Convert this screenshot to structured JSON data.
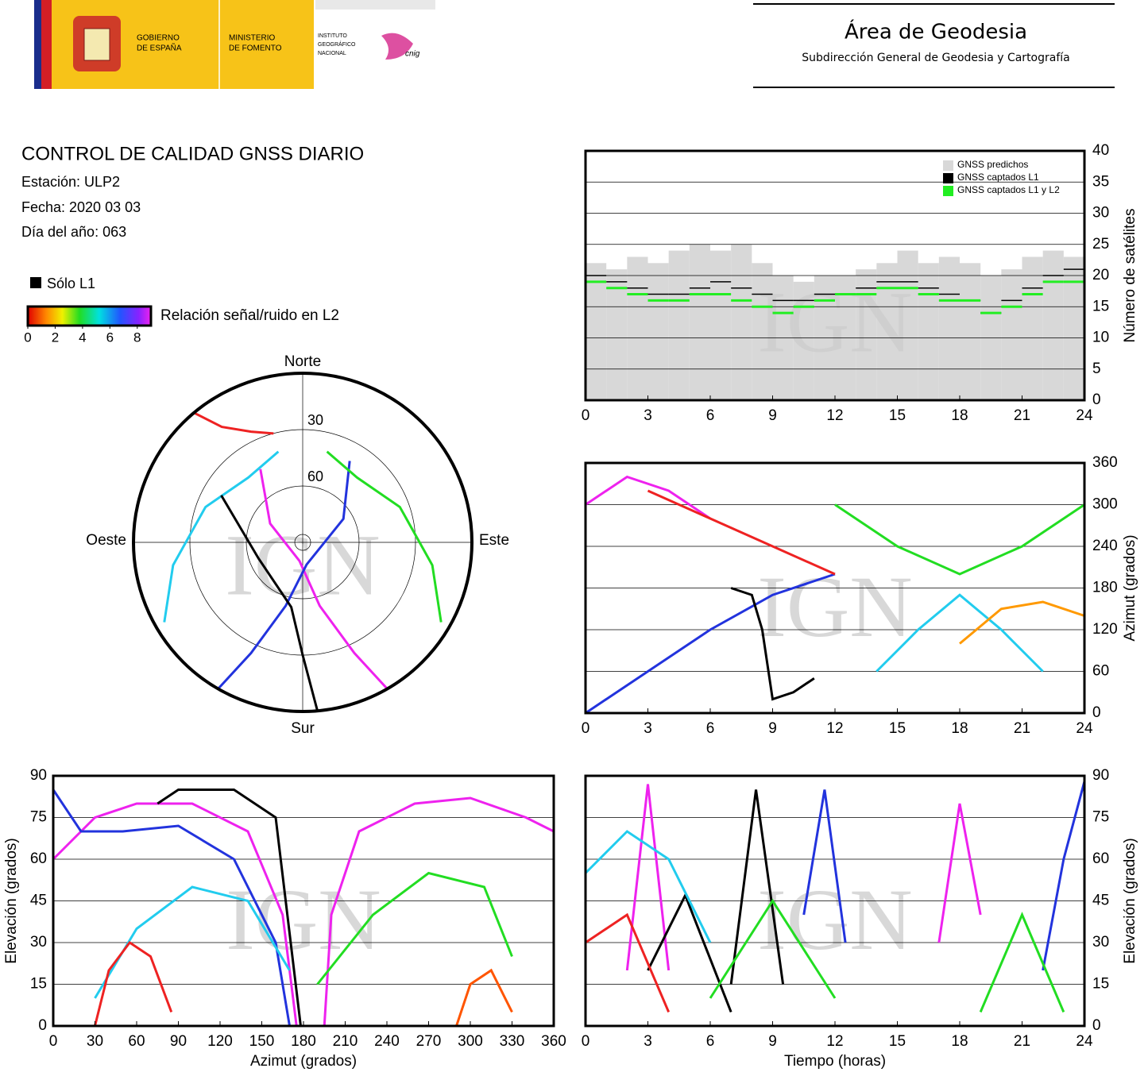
{
  "header": {
    "gobierno": [
      "GOBIERNO",
      "DE ESPAÑA"
    ],
    "ministerio": [
      "MINISTERIO",
      "DE FOMENTO"
    ],
    "instituto": [
      "INSTITUTO",
      "GEOGRÁFICO",
      "NACIONAL"
    ],
    "cnig": "cnig",
    "area": "Área de Geodesia",
    "subdireccion": "Subdirección General de Geodesia y Cartografía"
  },
  "report": {
    "title": "CONTROL DE CALIDAD GNSS DIARIO",
    "station": "Estación: ULP2",
    "date": "Fecha: 2020 03 03",
    "doy": "Día del año: 063"
  },
  "legend": {
    "solo_l1": "Sólo L1",
    "snr_label": "Relación señal/ruido en L2",
    "snr_ticks": [
      0,
      2,
      4,
      6,
      8
    ],
    "snr_lim": [
      0,
      9
    ]
  },
  "watermark": "IGN",
  "chart_data": [
    {
      "type": "polar",
      "cardinal": {
        "north": "Norte",
        "south": "Sur",
        "east": "Este",
        "west": "Oeste"
      },
      "rticks": [
        30,
        60
      ],
      "rlim": [
        90,
        0
      ],
      "series": [
        {
          "color": "#ee22ee",
          "azimuth": [
            150,
            155,
            165,
            190,
            300,
            330
          ],
          "elevation": [
            0,
            25,
            55,
            80,
            70,
            45
          ]
        },
        {
          "color": "#2233dd",
          "azimuth": [
            210,
            205,
            195,
            170,
            60,
            30
          ],
          "elevation": [
            0,
            25,
            55,
            78,
            65,
            40
          ]
        },
        {
          "color": "#22ccee",
          "azimuth": [
            240,
            260,
            290,
            320,
            345
          ],
          "elevation": [
            5,
            20,
            35,
            45,
            40
          ]
        },
        {
          "color": "#22dd22",
          "azimuth": [
            120,
            100,
            70,
            40,
            15
          ],
          "elevation": [
            5,
            20,
            35,
            45,
            40
          ]
        },
        {
          "color": "#ee2222",
          "azimuth": [
            320,
            325,
            335,
            345
          ],
          "elevation": [
            0,
            15,
            25,
            30
          ]
        },
        {
          "color": "#000000",
          "azimuth": [
            175,
            180,
            190,
            250,
            300
          ],
          "elevation": [
            0,
            30,
            55,
            65,
            40
          ]
        }
      ]
    },
    {
      "type": "step",
      "ylabel": "Número de satélites",
      "yaxis_side": "right",
      "grid": true,
      "legend": "upper right",
      "xlim": [
        0,
        24
      ],
      "ylim": [
        0,
        40
      ],
      "xticks": [
        0,
        3,
        6,
        9,
        12,
        15,
        18,
        21,
        24
      ],
      "yticks": [
        0,
        5,
        10,
        15,
        20,
        25,
        30,
        35,
        40
      ],
      "x": [
        0,
        1,
        2,
        3,
        4,
        5,
        6,
        7,
        8,
        9,
        10,
        11,
        12,
        13,
        14,
        15,
        16,
        17,
        18,
        19,
        20,
        21,
        22,
        23
      ],
      "series": [
        {
          "name": "GNSS predichos",
          "color": "#d8d8d8",
          "fill": true,
          "values": [
            22,
            21,
            23,
            22,
            24,
            25,
            24,
            25,
            22,
            20,
            19,
            20,
            20,
            21,
            22,
            24,
            22,
            23,
            22,
            20,
            21,
            23,
            24,
            23
          ]
        },
        {
          "name": "GNSS captados L1",
          "color": "#000000",
          "fill": false,
          "values": [
            20,
            19,
            18,
            17,
            17,
            18,
            19,
            18,
            17,
            16,
            16,
            17,
            17,
            18,
            19,
            19,
            18,
            17,
            16,
            14,
            16,
            18,
            20,
            21
          ]
        },
        {
          "name": "GNSS captados L1 y L2",
          "color": "#22ee22",
          "fill": false,
          "values": [
            19,
            18,
            17,
            16,
            16,
            17,
            17,
            16,
            15,
            14,
            15,
            16,
            17,
            17,
            18,
            18,
            17,
            16,
            16,
            14,
            15,
            17,
            19,
            19
          ]
        }
      ]
    },
    {
      "type": "line",
      "ylabel": "Azimut (grados)",
      "yaxis_side": "right",
      "grid": true,
      "xlim": [
        0,
        24
      ],
      "ylim": [
        0,
        360
      ],
      "xticks": [
        0,
        3,
        6,
        9,
        12,
        15,
        18,
        21,
        24
      ],
      "yticks": [
        0,
        60,
        120,
        180,
        240,
        300,
        360
      ],
      "series": [
        {
          "color": "#ee22ee",
          "x": [
            0,
            2,
            4,
            6
          ],
          "y": [
            300,
            340,
            320,
            280
          ]
        },
        {
          "color": "#2233dd",
          "x": [
            0,
            3,
            6,
            9,
            12
          ],
          "y": [
            0,
            60,
            120,
            170,
            200
          ]
        },
        {
          "color": "#22dd22",
          "x": [
            12,
            15,
            18,
            21,
            24
          ],
          "y": [
            300,
            240,
            200,
            240,
            300
          ]
        },
        {
          "color": "#ee2222",
          "x": [
            3,
            6,
            9,
            12
          ],
          "y": [
            320,
            280,
            240,
            200
          ]
        },
        {
          "color": "#22ccee",
          "x": [
            14,
            16,
            18,
            20,
            22
          ],
          "y": [
            60,
            120,
            170,
            120,
            60
          ]
        },
        {
          "color": "#000000",
          "x": [
            7,
            8,
            8.5,
            9,
            10,
            11
          ],
          "y": [
            180,
            170,
            120,
            20,
            30,
            50
          ]
        },
        {
          "color": "#ff9900",
          "x": [
            18,
            20,
            22,
            24
          ],
          "y": [
            100,
            150,
            160,
            140
          ]
        }
      ]
    },
    {
      "type": "line",
      "xlabel": "Azimut (grados)",
      "ylabel": "Elevación (grados)",
      "yaxis_side": "left",
      "grid": true,
      "xlim": [
        0,
        360
      ],
      "ylim": [
        0,
        90
      ],
      "xticks": [
        0,
        30,
        60,
        90,
        120,
        150,
        180,
        210,
        240,
        270,
        300,
        330,
        360
      ],
      "yticks": [
        0,
        15,
        30,
        45,
        60,
        75,
        90
      ],
      "series": [
        {
          "color": "#ee22ee",
          "x": [
            195,
            200,
            220,
            260,
            300,
            340,
            360
          ],
          "y": [
            0,
            40,
            70,
            80,
            82,
            75,
            70
          ]
        },
        {
          "color": "#ee22ee",
          "x": [
            0,
            30,
            60,
            100,
            140,
            165,
            175
          ],
          "y": [
            60,
            75,
            80,
            80,
            70,
            40,
            0
          ]
        },
        {
          "color": "#2233dd",
          "x": [
            0,
            20,
            50,
            90,
            130,
            160,
            170
          ],
          "y": [
            85,
            70,
            70,
            72,
            60,
            30,
            0
          ]
        },
        {
          "color": "#22ccee",
          "x": [
            30,
            60,
            100,
            140,
            170
          ],
          "y": [
            10,
            35,
            50,
            45,
            20
          ]
        },
        {
          "color": "#22dd22",
          "x": [
            190,
            230,
            270,
            310,
            330
          ],
          "y": [
            15,
            40,
            55,
            50,
            25
          ]
        },
        {
          "color": "#ee2222",
          "x": [
            30,
            40,
            55,
            70,
            85
          ],
          "y": [
            0,
            20,
            30,
            25,
            5
          ]
        },
        {
          "color": "#000000",
          "x": [
            75,
            90,
            130,
            160,
            178
          ],
          "y": [
            80,
            85,
            85,
            75,
            0
          ]
        },
        {
          "color": "#ff5500",
          "x": [
            290,
            300,
            315,
            330
          ],
          "y": [
            0,
            15,
            20,
            5
          ]
        }
      ]
    },
    {
      "type": "line",
      "xlabel": "Tiempo (horas)",
      "ylabel": "Elevación (grados)",
      "yaxis_side": "right",
      "grid": true,
      "xlim": [
        0,
        24
      ],
      "ylim": [
        0,
        90
      ],
      "xticks": [
        0,
        3,
        6,
        9,
        12,
        15,
        18,
        21,
        24
      ],
      "yticks": [
        0,
        15,
        30,
        45,
        60,
        75,
        90
      ],
      "series": [
        {
          "color": "#ee22ee",
          "x": [
            2,
            3,
            4
          ],
          "y": [
            20,
            87,
            20
          ]
        },
        {
          "color": "#ee22ee",
          "x": [
            17,
            18,
            19
          ],
          "y": [
            30,
            80,
            40
          ]
        },
        {
          "color": "#000000",
          "x": [
            7,
            8.2,
            9.5
          ],
          "y": [
            15,
            85,
            15
          ]
        },
        {
          "color": "#000000",
          "x": [
            3,
            4.8,
            7
          ],
          "y": [
            20,
            47,
            5
          ]
        },
        {
          "color": "#2233dd",
          "x": [
            10.5,
            11.5,
            12.5
          ],
          "y": [
            40,
            85,
            30
          ]
        },
        {
          "color": "#22ccee",
          "x": [
            0,
            2,
            4,
            6
          ],
          "y": [
            55,
            70,
            60,
            30
          ]
        },
        {
          "color": "#22dd22",
          "x": [
            6,
            9,
            12
          ],
          "y": [
            10,
            45,
            10
          ]
        },
        {
          "color": "#ee2222",
          "x": [
            0,
            2,
            4
          ],
          "y": [
            30,
            40,
            5
          ]
        },
        {
          "color": "#2233dd",
          "x": [
            22,
            23,
            24
          ],
          "y": [
            20,
            60,
            88
          ]
        },
        {
          "color": "#22dd22",
          "x": [
            19,
            21,
            23
          ],
          "y": [
            5,
            40,
            5
          ]
        }
      ]
    }
  ]
}
